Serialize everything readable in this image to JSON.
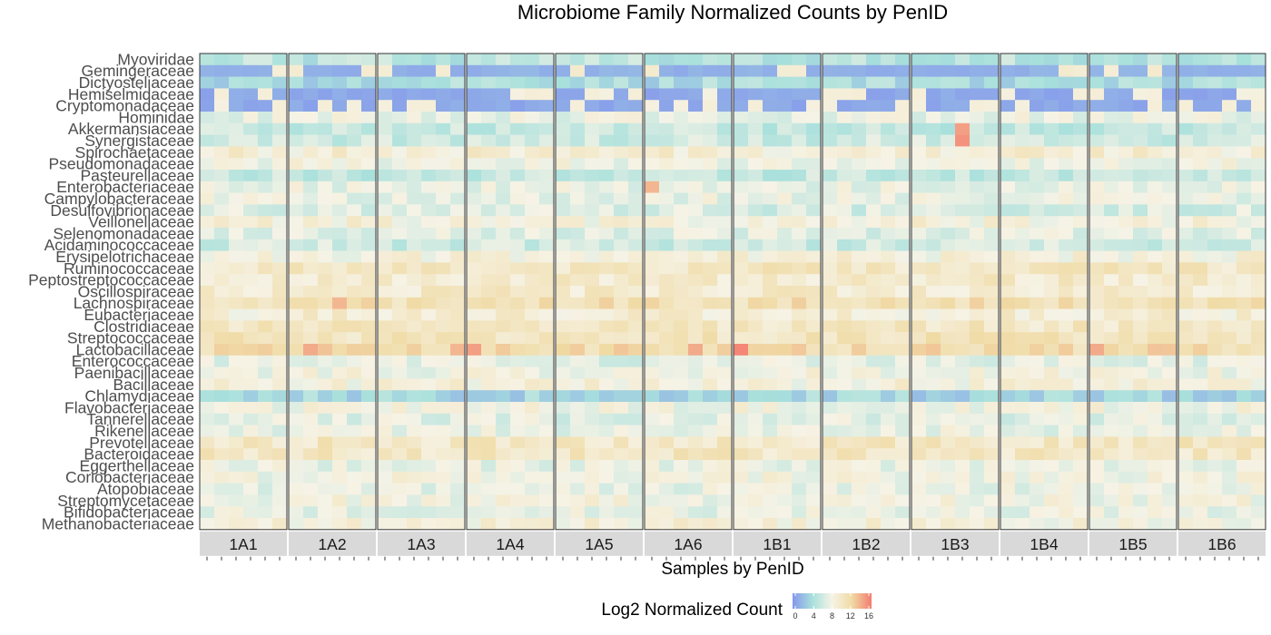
{
  "chart_data": {
    "type": "heatmap",
    "title": "Microbiome Family Normalized Counts by PenID",
    "xlabel": "Samples by PenID",
    "ylabel": "",
    "legend": {
      "title": "Log2 Normalized Count",
      "ticks": [
        0,
        4,
        8,
        12,
        16
      ],
      "range": [
        0,
        16
      ],
      "colors": [
        "#8597ec",
        "#a8e0dc",
        "#f6f3e6",
        "#f0dba5",
        "#f47b6f"
      ],
      "placement": "bottom"
    },
    "panels": [
      "1A1",
      "1A2",
      "1A3",
      "1A4",
      "1A5",
      "1A6",
      "1B1",
      "1B2",
      "1B3",
      "1B4",
      "1B5",
      "1B6"
    ],
    "samples_per_panel": 6,
    "rows": [
      "Myoviridae",
      "Gemingeraceae",
      "Dictyosteliaceae",
      "Hemiselmidaceae",
      "Cryptomonadaceae",
      "Hominidae",
      "Akkermansiaceae",
      "Synergistaceae",
      "Spirochaetaceae",
      "Pseudomonadaceae",
      "Pasteurellaceae",
      "Enterobacteriaceae",
      "Campylobacteraceae",
      "Desulfovibrionaceae",
      "Veillonellaceae",
      "Selenomonadaceae",
      "Acidaminococcaceae",
      "Erysipelotrichaceae",
      "Ruminococcaceae",
      "Peptostreptococcaceae",
      "Oscillospiraceae",
      "Lachnospiraceae",
      "Eubacteriaceae",
      "Clostridiaceae",
      "Streptococcaceae",
      "Lactobacillaceae",
      "Enterococcaceae",
      "Paenibacillaceae",
      "Bacillaceae",
      "Chlamydiaceae",
      "Flavobacteriaceae",
      "Tannerellaceae",
      "Rikenellaceae",
      "Prevotellaceae",
      "Bacteroidaceae",
      "Eggerthellaceae",
      "Coriobacteriaceae",
      "Atopobiaceae",
      "Streptomycetaceae",
      "Bifidobacteriaceae",
      "Methanobacteriaceae"
    ],
    "row_base_values": [
      5,
      1.5,
      4,
      1,
      1,
      7.5,
      5.5,
      6,
      9,
      8,
      5.5,
      7.5,
      7.5,
      6.5,
      8.5,
      7,
      6,
      8.5,
      10,
      9.5,
      9.5,
      11,
      9,
      10,
      10.5,
      11.5,
      7,
      8,
      8.5,
      3.5,
      8,
      7,
      7.5,
      10,
      10,
      7.5,
      8,
      7.5,
      8,
      7.5,
      8.5
    ],
    "panel_highlights": [
      {
        "panel": "1A2",
        "sample": 2,
        "row": "Lactobacillaceae",
        "value": 14
      },
      {
        "panel": "1A2",
        "sample": 4,
        "row": "Lachnospiraceae",
        "value": 13.5
      },
      {
        "panel": "1A3",
        "sample": 6,
        "row": "Lactobacillaceae",
        "value": 13.5
      },
      {
        "panel": "1A4",
        "sample": 1,
        "row": "Lactobacillaceae",
        "value": 14.5
      },
      {
        "panel": "1A6",
        "sample": 1,
        "row": "Enterobacteriaceae",
        "value": 13.5
      },
      {
        "panel": "1A6",
        "sample": 4,
        "row": "Lactobacillaceae",
        "value": 14
      },
      {
        "panel": "1B1",
        "sample": 1,
        "row": "Lactobacillaceae",
        "value": 15.5
      },
      {
        "panel": "1B3",
        "sample": 4,
        "row": "Synergistaceae",
        "value": 15
      },
      {
        "panel": "1B3",
        "sample": 4,
        "row": "Akkermansiaceae",
        "value": 14.5
      },
      {
        "panel": "1B5",
        "sample": 1,
        "row": "Lactobacillaceae",
        "value": 14
      }
    ],
    "grid": false
  }
}
